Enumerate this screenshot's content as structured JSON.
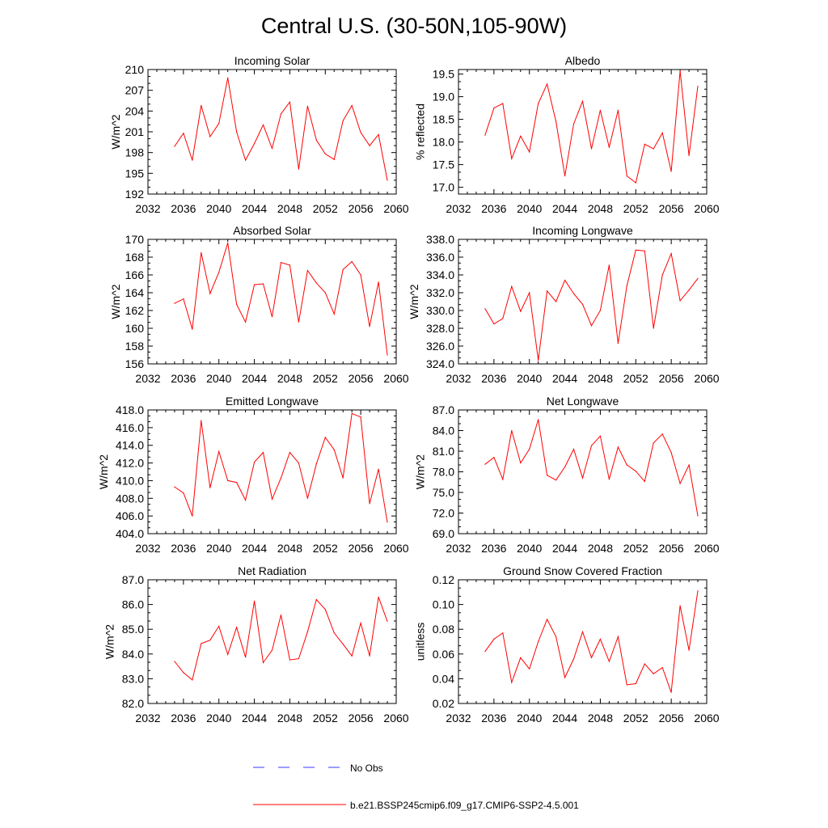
{
  "figure": {
    "title": "Central U.S. (30-50N,105-90W)",
    "colors": {
      "model": "#ff0000",
      "obs": "#3a3aff",
      "axis": "#000000"
    }
  },
  "legend": {
    "placement": "bottom-center",
    "entries": [
      {
        "label": "No Obs",
        "style": "dashed",
        "color": "#3a3aff"
      },
      {
        "label": "b.e21.BSSP245cmip6.f09_g17.CMIP6-SSP2-4.5.001",
        "style": "solid",
        "color": "#ff0000"
      }
    ]
  },
  "chart_data": [
    {
      "type": "line",
      "title": "Incoming Solar",
      "ylabel": "W/m^2",
      "xlabel": "",
      "xlim": [
        2032,
        2060
      ],
      "ylim": [
        192,
        210
      ],
      "xticks": [
        2032,
        2036,
        2040,
        2044,
        2048,
        2052,
        2056,
        2060
      ],
      "xtick_labels": [
        "2032",
        "2036",
        "2040",
        "2044",
        "2048",
        "2052",
        "2056",
        "2060"
      ],
      "yticks": [
        192,
        195,
        198,
        201,
        204,
        207,
        210
      ],
      "ytick_labels": [
        "192",
        "195",
        "198",
        "201",
        "204",
        "207",
        "210"
      ],
      "x": [
        2035,
        2036,
        2037,
        2038,
        2039,
        2040,
        2041,
        2042,
        2043,
        2044,
        2045,
        2046,
        2047,
        2048,
        2049,
        2050,
        2051,
        2052,
        2053,
        2054,
        2055,
        2056,
        2057,
        2058,
        2059
      ],
      "series": [
        {
          "name": "b.e21.BSSP245cmip6.f09_g17.CMIP6-SSP2-4.5.001",
          "color": "#ff0000",
          "values": [
            198.9,
            200.8,
            196.9,
            204.8,
            200.3,
            202.2,
            208.8,
            201.0,
            196.9,
            199.3,
            202.0,
            198.6,
            203.6,
            205.3,
            195.6,
            204.7,
            199.8,
            197.8,
            197.0,
            202.6,
            204.8,
            200.9,
            199.0,
            200.6,
            194.0
          ]
        }
      ]
    },
    {
      "type": "line",
      "title": "Albedo",
      "ylabel": "% reflected",
      "xlabel": "",
      "xlim": [
        2032,
        2060
      ],
      "ylim": [
        16.85,
        19.6
      ],
      "xticks": [
        2032,
        2036,
        2040,
        2044,
        2048,
        2052,
        2056,
        2060
      ],
      "xtick_labels": [
        "2032",
        "2036",
        "2040",
        "2044",
        "2048",
        "2052",
        "2056",
        "2060"
      ],
      "yticks": [
        17.0,
        17.5,
        18.0,
        18.5,
        19.0,
        19.5
      ],
      "ytick_labels": [
        "17.0",
        "17.5",
        "18.0",
        "18.5",
        "19.0",
        "19.5"
      ],
      "x": [
        2035,
        2036,
        2037,
        2038,
        2039,
        2040,
        2041,
        2042,
        2043,
        2044,
        2045,
        2046,
        2047,
        2048,
        2049,
        2050,
        2051,
        2052,
        2053,
        2054,
        2055,
        2056,
        2057,
        2058,
        2059
      ],
      "series": [
        {
          "name": "b.e21.BSSP245cmip6.f09_g17.CMIP6-SSP2-4.5.001",
          "color": "#ff0000",
          "values": [
            18.15,
            18.75,
            18.85,
            17.63,
            18.13,
            17.78,
            18.85,
            19.28,
            18.45,
            17.25,
            18.4,
            18.9,
            17.85,
            18.7,
            17.88,
            18.7,
            17.25,
            17.1,
            17.95,
            17.85,
            18.2,
            17.35,
            19.57,
            17.7,
            19.23
          ]
        }
      ]
    },
    {
      "type": "line",
      "title": "Absorbed Solar",
      "ylabel": "W/m^2",
      "xlabel": "",
      "xlim": [
        2032,
        2060
      ],
      "ylim": [
        156,
        170
      ],
      "xticks": [
        2032,
        2036,
        2040,
        2044,
        2048,
        2052,
        2056,
        2060
      ],
      "xtick_labels": [
        "2032",
        "2036",
        "2040",
        "2044",
        "2048",
        "2052",
        "2056",
        "2060"
      ],
      "yticks": [
        156,
        158,
        160,
        162,
        164,
        166,
        168,
        170
      ],
      "ytick_labels": [
        "156",
        "158",
        "160",
        "162",
        "164",
        "166",
        "168",
        "170"
      ],
      "x": [
        2035,
        2036,
        2037,
        2038,
        2039,
        2040,
        2041,
        2042,
        2043,
        2044,
        2045,
        2046,
        2047,
        2048,
        2049,
        2050,
        2051,
        2052,
        2053,
        2054,
        2055,
        2056,
        2057,
        2058,
        2059
      ],
      "series": [
        {
          "name": "b.e21.BSSP245cmip6.f09_g17.CMIP6-SSP2-4.5.001",
          "color": "#ff0000",
          "values": [
            162.8,
            163.3,
            159.9,
            168.5,
            163.9,
            166.3,
            169.6,
            162.7,
            160.7,
            164.9,
            165.0,
            161.3,
            167.4,
            167.1,
            160.7,
            166.5,
            165.1,
            164.0,
            161.6,
            166.6,
            167.5,
            166.0,
            160.2,
            165.2,
            157.0
          ]
        }
      ]
    },
    {
      "type": "line",
      "title": "Incoming Longwave",
      "ylabel": "W/m^2",
      "xlabel": "",
      "xlim": [
        2032,
        2060
      ],
      "ylim": [
        324.0,
        338.0
      ],
      "xticks": [
        2032,
        2036,
        2040,
        2044,
        2048,
        2052,
        2056,
        2060
      ],
      "xtick_labels": [
        "2032",
        "2036",
        "2040",
        "2044",
        "2048",
        "2052",
        "2056",
        "2060"
      ],
      "yticks": [
        324,
        326,
        328,
        330,
        332,
        334,
        336,
        338
      ],
      "ytick_labels": [
        "324.0",
        "326.0",
        "328.0",
        "330.0",
        "332.0",
        "334.0",
        "336.0",
        "338.0"
      ],
      "x": [
        2035,
        2036,
        2037,
        2038,
        2039,
        2040,
        2041,
        2042,
        2043,
        2044,
        2045,
        2046,
        2047,
        2048,
        2049,
        2050,
        2051,
        2052,
        2053,
        2054,
        2055,
        2056,
        2057,
        2058,
        2059
      ],
      "series": [
        {
          "name": "b.e21.BSSP245cmip6.f09_g17.CMIP6-SSP2-4.5.001",
          "color": "#ff0000",
          "values": [
            330.2,
            328.5,
            329.1,
            332.7,
            329.9,
            332.0,
            324.4,
            332.2,
            331.0,
            333.4,
            331.9,
            330.7,
            328.3,
            330.0,
            335.1,
            326.3,
            332.8,
            336.8,
            336.7,
            328.0,
            334.0,
            336.4,
            331.1,
            332.3,
            333.6
          ]
        }
      ]
    },
    {
      "type": "line",
      "title": "Emitted Longwave",
      "ylabel": "W/m^2",
      "xlabel": "",
      "xlim": [
        2032,
        2060
      ],
      "ylim": [
        404.0,
        418.0
      ],
      "xticks": [
        2032,
        2036,
        2040,
        2044,
        2048,
        2052,
        2056,
        2060
      ],
      "xtick_labels": [
        "2032",
        "2036",
        "2040",
        "2044",
        "2048",
        "2052",
        "2056",
        "2060"
      ],
      "yticks": [
        404,
        406,
        408,
        410,
        412,
        414,
        416,
        418
      ],
      "ytick_labels": [
        "404.0",
        "406.0",
        "408.0",
        "410.0",
        "412.0",
        "414.0",
        "416.0",
        "418.0"
      ],
      "x": [
        2035,
        2036,
        2037,
        2038,
        2039,
        2040,
        2041,
        2042,
        2043,
        2044,
        2045,
        2046,
        2047,
        2048,
        2049,
        2050,
        2051,
        2052,
        2053,
        2054,
        2055,
        2056,
        2057,
        2058,
        2059
      ],
      "series": [
        {
          "name": "b.e21.BSSP245cmip6.f09_g17.CMIP6-SSP2-4.5.001",
          "color": "#ff0000",
          "values": [
            409.3,
            408.6,
            406.0,
            416.8,
            409.2,
            413.3,
            410.0,
            409.8,
            407.8,
            412.1,
            413.2,
            407.9,
            410.3,
            413.2,
            412.0,
            408.0,
            411.9,
            414.9,
            413.5,
            410.3,
            417.6,
            417.2,
            407.4,
            411.3,
            405.3
          ]
        }
      ]
    },
    {
      "type": "line",
      "title": "Net Longwave",
      "ylabel": "W/m^2",
      "xlabel": "",
      "xlim": [
        2032,
        2060
      ],
      "ylim": [
        69.0,
        87.0
      ],
      "xticks": [
        2032,
        2036,
        2040,
        2044,
        2048,
        2052,
        2056,
        2060
      ],
      "xtick_labels": [
        "2032",
        "2036",
        "2040",
        "2044",
        "2048",
        "2052",
        "2056",
        "2060"
      ],
      "yticks": [
        69,
        72,
        75,
        78,
        81,
        84,
        87
      ],
      "ytick_labels": [
        "69.0",
        "72.0",
        "75.0",
        "78.0",
        "81.0",
        "84.0",
        "87.0"
      ],
      "x": [
        2035,
        2036,
        2037,
        2038,
        2039,
        2040,
        2041,
        2042,
        2043,
        2044,
        2045,
        2046,
        2047,
        2048,
        2049,
        2050,
        2051,
        2052,
        2053,
        2054,
        2055,
        2056,
        2057,
        2058,
        2059
      ],
      "series": [
        {
          "name": "b.e21.BSSP245cmip6.f09_g17.CMIP6-SSP2-4.5.001",
          "color": "#ff0000",
          "values": [
            79.1,
            80.1,
            76.9,
            84.0,
            79.3,
            81.3,
            85.6,
            77.5,
            76.8,
            78.7,
            81.3,
            77.1,
            81.8,
            83.2,
            76.9,
            81.6,
            79.0,
            78.1,
            76.6,
            82.2,
            83.5,
            80.8,
            76.3,
            79.0,
            71.6
          ]
        }
      ]
    },
    {
      "type": "line",
      "title": "Net Radiation",
      "ylabel": "W/m^2",
      "xlabel": "",
      "xlim": [
        2032,
        2060
      ],
      "ylim": [
        82.0,
        87.0
      ],
      "xticks": [
        2032,
        2036,
        2040,
        2044,
        2048,
        2052,
        2056,
        2060
      ],
      "xtick_labels": [
        "2032",
        "2036",
        "2040",
        "2044",
        "2048",
        "2052",
        "2056",
        "2060"
      ],
      "yticks": [
        82,
        83,
        84,
        85,
        86,
        87
      ],
      "ytick_labels": [
        "82.0",
        "83.0",
        "84.0",
        "85.0",
        "86.0",
        "87.0"
      ],
      "x": [
        2035,
        2036,
        2037,
        2038,
        2039,
        2040,
        2041,
        2042,
        2043,
        2044,
        2045,
        2046,
        2047,
        2048,
        2049,
        2050,
        2051,
        2052,
        2053,
        2054,
        2055,
        2056,
        2057,
        2058,
        2059
      ],
      "series": [
        {
          "name": "b.e21.BSSP245cmip6.f09_g17.CMIP6-SSP2-4.5.001",
          "color": "#ff0000",
          "values": [
            83.7,
            83.25,
            82.95,
            84.42,
            84.56,
            85.12,
            83.98,
            85.08,
            83.87,
            86.14,
            83.65,
            84.15,
            85.58,
            83.76,
            83.81,
            84.9,
            86.2,
            85.8,
            84.85,
            84.4,
            83.92,
            85.25,
            83.92,
            86.3,
            85.32
          ]
        }
      ]
    },
    {
      "type": "line",
      "title": "Ground Snow Covered Fraction",
      "ylabel": "unitless",
      "xlabel": "",
      "xlim": [
        2032,
        2060
      ],
      "ylim": [
        0.02,
        0.12
      ],
      "xticks": [
        2032,
        2036,
        2040,
        2044,
        2048,
        2052,
        2056,
        2060
      ],
      "xtick_labels": [
        "2032",
        "2036",
        "2040",
        "2044",
        "2048",
        "2052",
        "2056",
        "2060"
      ],
      "yticks": [
        0.02,
        0.04,
        0.06,
        0.08,
        0.1,
        0.12
      ],
      "ytick_labels": [
        "0.02",
        "0.04",
        "0.06",
        "0.08",
        "0.10",
        "0.12"
      ],
      "x": [
        2035,
        2036,
        2037,
        2038,
        2039,
        2040,
        2041,
        2042,
        2043,
        2044,
        2045,
        2046,
        2047,
        2048,
        2049,
        2050,
        2051,
        2052,
        2053,
        2054,
        2055,
        2056,
        2057,
        2058,
        2059
      ],
      "series": [
        {
          "name": "b.e21.BSSP245cmip6.f09_g17.CMIP6-SSP2-4.5.001",
          "color": "#ff0000",
          "values": [
            0.062,
            0.072,
            0.077,
            0.037,
            0.057,
            0.048,
            0.07,
            0.088,
            0.074,
            0.041,
            0.056,
            0.078,
            0.057,
            0.072,
            0.054,
            0.074,
            0.035,
            0.036,
            0.052,
            0.044,
            0.049,
            0.029,
            0.099,
            0.063,
            0.111
          ]
        }
      ]
    }
  ]
}
